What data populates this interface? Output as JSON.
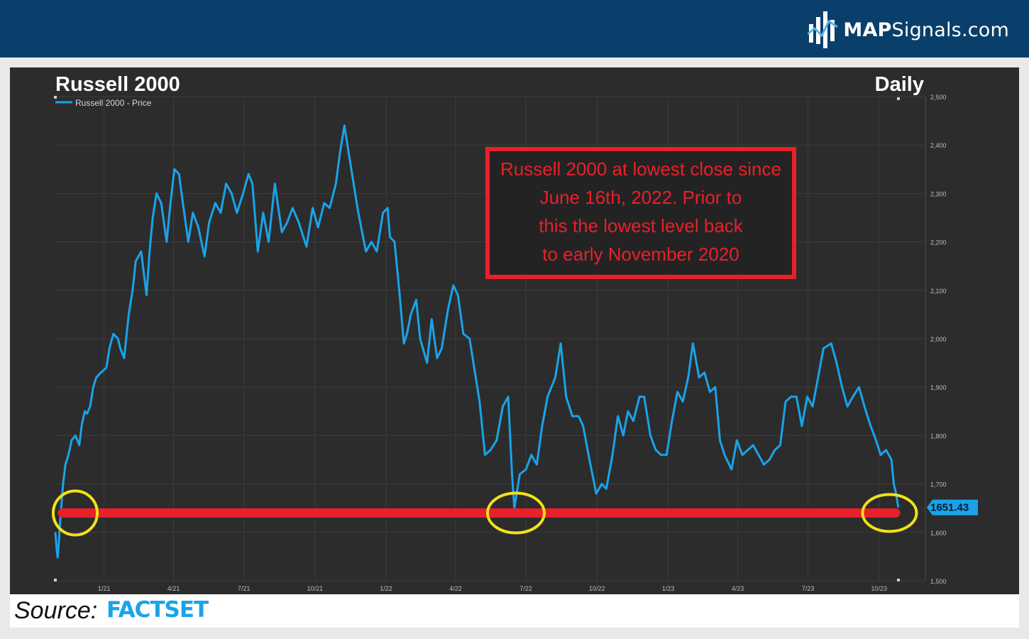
{
  "header": {
    "brand_bold": "MAP",
    "brand_rest": "Signals.com"
  },
  "chart_data": {
    "type": "line",
    "title": "Russell 2000",
    "subtitle": "Daily",
    "legend": "Russell 2000 - Price",
    "ylim": [
      1500,
      2500
    ],
    "y_ticks": [
      "2,500",
      "2,400",
      "2,300",
      "2,200",
      "2,100",
      "2,000",
      "1,900",
      "1,800",
      "1,700",
      "1,600",
      "1,500"
    ],
    "x_ticks": [
      "1/21",
      "4/21",
      "7/21",
      "10/21",
      "1/22",
      "4/22",
      "7/22",
      "10/22",
      "1/23",
      "4/23",
      "7/23",
      "10/23"
    ],
    "last_value_label": "1651.43",
    "support_level": 1640,
    "series": [
      {
        "color": "#1aa3e8",
        "points": [
          [
            "2020-10-30",
            1600
          ],
          [
            "2020-11-01",
            1560
          ],
          [
            "2020-11-02",
            1548
          ],
          [
            "2020-11-04",
            1590
          ],
          [
            "2020-11-06",
            1640
          ],
          [
            "2020-11-09",
            1700
          ],
          [
            "2020-11-12",
            1740
          ],
          [
            "2020-11-16",
            1760
          ],
          [
            "2020-11-20",
            1790
          ],
          [
            "2020-11-25",
            1800
          ],
          [
            "2020-11-30",
            1780
          ],
          [
            "2020-12-03",
            1820
          ],
          [
            "2020-12-07",
            1850
          ],
          [
            "2020-12-10",
            1845
          ],
          [
            "2020-12-14",
            1860
          ],
          [
            "2020-12-18",
            1900
          ],
          [
            "2020-12-22",
            1920
          ],
          [
            "2020-12-28",
            1930
          ],
          [
            "2021-01-04",
            1940
          ],
          [
            "2021-01-08",
            1980
          ],
          [
            "2021-01-13",
            2010
          ],
          [
            "2021-01-19",
            2000
          ],
          [
            "2021-01-22",
            1980
          ],
          [
            "2021-01-27",
            1960
          ],
          [
            "2021-02-02",
            2050
          ],
          [
            "2021-02-07",
            2100
          ],
          [
            "2021-02-11",
            2160
          ],
          [
            "2021-02-18",
            2180
          ],
          [
            "2021-02-25",
            2090
          ],
          [
            "2021-03-01",
            2180
          ],
          [
            "2021-03-05",
            2250
          ],
          [
            "2021-03-10",
            2300
          ],
          [
            "2021-03-16",
            2280
          ],
          [
            "2021-03-23",
            2200
          ],
          [
            "2021-03-28",
            2280
          ],
          [
            "2021-04-02",
            2350
          ],
          [
            "2021-04-08",
            2340
          ],
          [
            "2021-04-13",
            2280
          ],
          [
            "2021-04-20",
            2200
          ],
          [
            "2021-04-26",
            2260
          ],
          [
            "2021-05-03",
            2230
          ],
          [
            "2021-05-11",
            2170
          ],
          [
            "2021-05-17",
            2240
          ],
          [
            "2021-05-25",
            2280
          ],
          [
            "2021-06-01",
            2260
          ],
          [
            "2021-06-08",
            2320
          ],
          [
            "2021-06-15",
            2300
          ],
          [
            "2021-06-22",
            2260
          ],
          [
            "2021-06-30",
            2300
          ],
          [
            "2021-07-07",
            2340
          ],
          [
            "2021-07-12",
            2320
          ],
          [
            "2021-07-19",
            2180
          ],
          [
            "2021-07-26",
            2260
          ],
          [
            "2021-08-02",
            2200
          ],
          [
            "2021-08-10",
            2320
          ],
          [
            "2021-08-19",
            2220
          ],
          [
            "2021-08-26",
            2240
          ],
          [
            "2021-09-02",
            2270
          ],
          [
            "2021-09-10",
            2240
          ],
          [
            "2021-09-20",
            2190
          ],
          [
            "2021-09-28",
            2270
          ],
          [
            "2021-10-05",
            2230
          ],
          [
            "2021-10-13",
            2280
          ],
          [
            "2021-10-20",
            2270
          ],
          [
            "2021-10-28",
            2320
          ],
          [
            "2021-11-02",
            2380
          ],
          [
            "2021-11-08",
            2440
          ],
          [
            "2021-11-12",
            2400
          ],
          [
            "2021-11-19",
            2330
          ],
          [
            "2021-11-26",
            2260
          ],
          [
            "2021-12-01",
            2220
          ],
          [
            "2021-12-06",
            2180
          ],
          [
            "2021-12-13",
            2200
          ],
          [
            "2021-12-20",
            2180
          ],
          [
            "2021-12-28",
            2260
          ],
          [
            "2022-01-03",
            2270
          ],
          [
            "2022-01-06",
            2210
          ],
          [
            "2022-01-12",
            2200
          ],
          [
            "2022-01-18",
            2100
          ],
          [
            "2022-01-24",
            1990
          ],
          [
            "2022-01-28",
            2010
          ],
          [
            "2022-02-02",
            2050
          ],
          [
            "2022-02-09",
            2080
          ],
          [
            "2022-02-14",
            2000
          ],
          [
            "2022-02-23",
            1950
          ],
          [
            "2022-03-01",
            2040
          ],
          [
            "2022-03-08",
            1960
          ],
          [
            "2022-03-14",
            1980
          ],
          [
            "2022-03-22",
            2060
          ],
          [
            "2022-03-29",
            2110
          ],
          [
            "2022-04-04",
            2090
          ],
          [
            "2022-04-11",
            2010
          ],
          [
            "2022-04-19",
            2000
          ],
          [
            "2022-04-25",
            1940
          ],
          [
            "2022-05-02",
            1870
          ],
          [
            "2022-05-09",
            1760
          ],
          [
            "2022-05-16",
            1770
          ],
          [
            "2022-05-24",
            1790
          ],
          [
            "2022-06-01",
            1860
          ],
          [
            "2022-06-08",
            1880
          ],
          [
            "2022-06-13",
            1720
          ],
          [
            "2022-06-16",
            1650
          ],
          [
            "2022-06-23",
            1720
          ],
          [
            "2022-07-01",
            1730
          ],
          [
            "2022-07-08",
            1760
          ],
          [
            "2022-07-15",
            1740
          ],
          [
            "2022-07-22",
            1820
          ],
          [
            "2022-07-29",
            1880
          ],
          [
            "2022-08-08",
            1920
          ],
          [
            "2022-08-15",
            1990
          ],
          [
            "2022-08-22",
            1880
          ],
          [
            "2022-08-30",
            1840
          ],
          [
            "2022-09-07",
            1840
          ],
          [
            "2022-09-13",
            1820
          ],
          [
            "2022-09-20",
            1760
          ],
          [
            "2022-09-30",
            1680
          ],
          [
            "2022-10-07",
            1700
          ],
          [
            "2022-10-13",
            1690
          ],
          [
            "2022-10-21",
            1760
          ],
          [
            "2022-10-28",
            1840
          ],
          [
            "2022-11-04",
            1800
          ],
          [
            "2022-11-10",
            1850
          ],
          [
            "2022-11-17",
            1830
          ],
          [
            "2022-11-25",
            1880
          ],
          [
            "2022-12-01",
            1880
          ],
          [
            "2022-12-09",
            1800
          ],
          [
            "2022-12-16",
            1770
          ],
          [
            "2022-12-23",
            1760
          ],
          [
            "2022-12-30",
            1760
          ],
          [
            "2023-01-06",
            1830
          ],
          [
            "2023-01-13",
            1890
          ],
          [
            "2023-01-20",
            1870
          ],
          [
            "2023-01-27",
            1920
          ],
          [
            "2023-02-02",
            1990
          ],
          [
            "2023-02-10",
            1920
          ],
          [
            "2023-02-17",
            1930
          ],
          [
            "2023-02-24",
            1890
          ],
          [
            "2023-03-03",
            1900
          ],
          [
            "2023-03-09",
            1790
          ],
          [
            "2023-03-15",
            1760
          ],
          [
            "2023-03-24",
            1730
          ],
          [
            "2023-03-31",
            1790
          ],
          [
            "2023-04-07",
            1760
          ],
          [
            "2023-04-14",
            1770
          ],
          [
            "2023-04-21",
            1780
          ],
          [
            "2023-04-28",
            1760
          ],
          [
            "2023-05-05",
            1740
          ],
          [
            "2023-05-12",
            1750
          ],
          [
            "2023-05-19",
            1770
          ],
          [
            "2023-05-26",
            1780
          ],
          [
            "2023-06-02",
            1870
          ],
          [
            "2023-06-09",
            1880
          ],
          [
            "2023-06-16",
            1880
          ],
          [
            "2023-06-23",
            1820
          ],
          [
            "2023-06-30",
            1880
          ],
          [
            "2023-07-07",
            1860
          ],
          [
            "2023-07-14",
            1920
          ],
          [
            "2023-07-21",
            1980
          ],
          [
            "2023-07-31",
            1990
          ],
          [
            "2023-08-07",
            1950
          ],
          [
            "2023-08-14",
            1900
          ],
          [
            "2023-08-21",
            1860
          ],
          [
            "2023-08-28",
            1880
          ],
          [
            "2023-09-05",
            1900
          ],
          [
            "2023-09-12",
            1860
          ],
          [
            "2023-09-20",
            1820
          ],
          [
            "2023-09-27",
            1790
          ],
          [
            "2023-10-03",
            1760
          ],
          [
            "2023-10-10",
            1770
          ],
          [
            "2023-10-17",
            1750
          ],
          [
            "2023-10-20",
            1700
          ],
          [
            "2023-10-23",
            1680
          ],
          [
            "2023-10-25",
            1660
          ],
          [
            "2023-10-26",
            1651.43
          ]
        ]
      }
    ],
    "annotation": "Russell 2000 at lowest close since June 16th, 2022. Prior to this the lowest level back to early November 2020"
  },
  "footer": {
    "source_label": "Source:",
    "source_brand": "FACTSET"
  }
}
